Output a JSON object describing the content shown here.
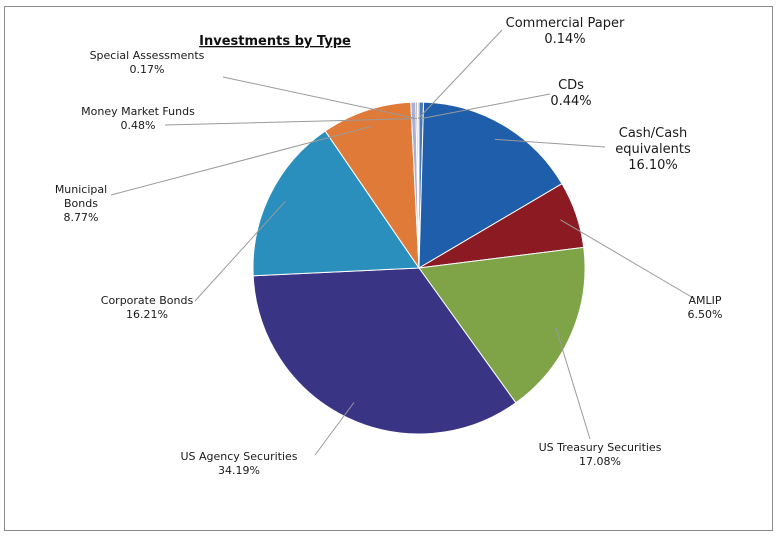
{
  "chart_data": {
    "type": "pie",
    "title": "Investments by Type",
    "slices": [
      {
        "label": [
          "CDs"
        ],
        "pct_text": "0.44%",
        "value": 0.44,
        "color": "#4a78b8"
      },
      {
        "label": [
          "Cash/Cash",
          "equivalents"
        ],
        "pct_text": "16.10%",
        "value": 16.1,
        "color": "#1f5eaa"
      },
      {
        "label": [
          "AMLIP"
        ],
        "pct_text": "6.50%",
        "value": 6.5,
        "color": "#8b1a22"
      },
      {
        "label": [
          "US Treasury Securities"
        ],
        "pct_text": "17.08%",
        "value": 17.08,
        "color": "#7ea447"
      },
      {
        "label": [
          "US Agency Securities"
        ],
        "pct_text": "34.19%",
        "value": 34.19,
        "color": "#3a3484"
      },
      {
        "label": [
          "Corporate Bonds"
        ],
        "pct_text": "16.21%",
        "value": 16.21,
        "color": "#2a8fbc"
      },
      {
        "label": [
          "Municipal",
          "Bonds"
        ],
        "pct_text": "8.77%",
        "value": 8.77,
        "color": "#e07a38"
      },
      {
        "label": [
          "Money Market Funds"
        ],
        "pct_text": "0.48%",
        "value": 0.48,
        "color": "#a9b0d6"
      },
      {
        "label": [
          "Special Assessments"
        ],
        "pct_text": "0.17%",
        "value": 0.17,
        "color": "#9a9a9a"
      },
      {
        "label": [
          "Commercial Paper"
        ],
        "pct_text": "0.14%",
        "value": 0.14,
        "color": "#b5b5b5"
      }
    ]
  }
}
